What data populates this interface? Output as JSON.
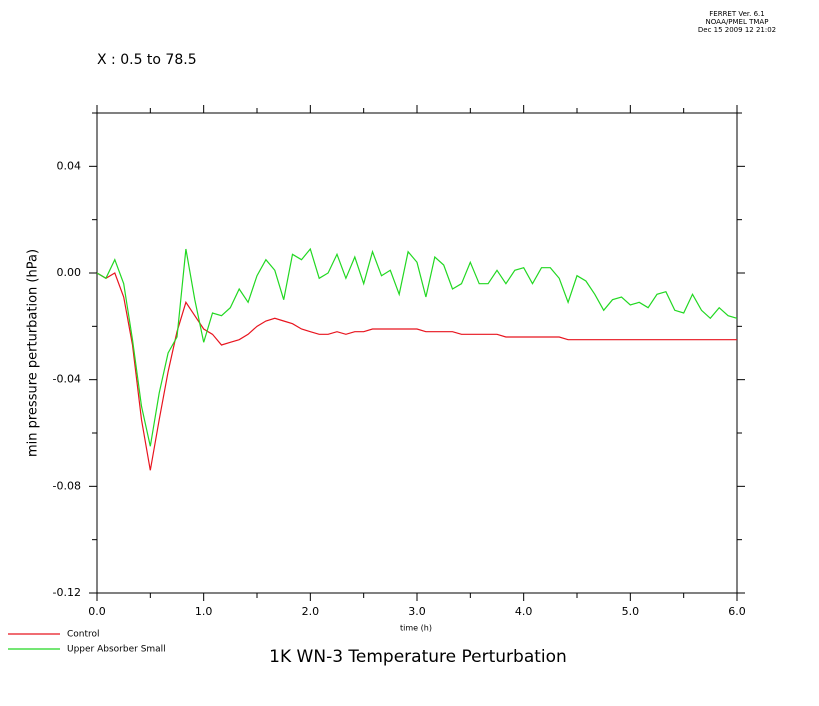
{
  "header": [
    "FERRET Ver. 6.1",
    "NOAA/PMEL TMAP",
    "Dec 15 2009 12 21:02"
  ],
  "chart_data": {
    "type": "line",
    "subtitle": "X : 0.5 to 78.5",
    "title": "1K WN-3 Temperature Perturbation",
    "xlabel": "time (h)",
    "ylabel": "min pressure perturbation (hPa)",
    "xlim": [
      0,
      6
    ],
    "ylim": [
      -0.12,
      0.06
    ],
    "xticks": [
      {
        "value": 0,
        "label": "0.0"
      },
      {
        "value": 1,
        "label": "1.0"
      },
      {
        "value": 2,
        "label": "2.0"
      },
      {
        "value": 3,
        "label": "3.0"
      },
      {
        "value": 4,
        "label": "4.0"
      },
      {
        "value": 5,
        "label": "5.0"
      },
      {
        "value": 6,
        "label": "6.0"
      }
    ],
    "xminor_ticks": [
      0.5,
      1.5,
      2.5,
      3.5,
      4.5,
      5.5
    ],
    "yticks": [
      -0.12,
      -0.08,
      -0.04,
      {
        "value": 0,
        "label": "0.00"
      },
      0.04
    ],
    "yminor_ticks": [
      -0.1,
      -0.06,
      -0.02,
      0.02,
      0.06
    ],
    "legend": "bottom-left",
    "x": [
      0,
      0.083,
      0.167,
      0.25,
      0.333,
      0.417,
      0.5,
      0.583,
      0.667,
      0.75,
      0.833,
      0.917,
      1,
      1.083,
      1.167,
      1.25,
      1.333,
      1.417,
      1.5,
      1.583,
      1.667,
      1.75,
      1.833,
      1.917,
      2,
      2.083,
      2.167,
      2.25,
      2.333,
      2.417,
      2.5,
      2.583,
      2.667,
      2.75,
      2.833,
      2.917,
      3,
      3.083,
      3.167,
      3.25,
      3.333,
      3.417,
      3.5,
      3.583,
      3.667,
      3.75,
      3.833,
      3.917,
      4,
      4.083,
      4.167,
      4.25,
      4.333,
      4.417,
      4.5,
      4.583,
      4.667,
      4.75,
      4.833,
      4.917,
      5,
      5.083,
      5.167,
      5.25,
      5.333,
      5.417,
      5.5,
      5.583,
      5.667,
      5.75,
      5.833,
      5.917,
      6
    ],
    "series": [
      {
        "name": "Control",
        "color": "#e8141e",
        "values": [
          0,
          -0.002,
          0,
          -0.009,
          -0.027,
          -0.055,
          -0.074,
          -0.055,
          -0.037,
          -0.022,
          -0.011,
          -0.016,
          -0.021,
          -0.023,
          -0.027,
          -0.026,
          -0.025,
          -0.023,
          -0.02,
          -0.018,
          -0.017,
          -0.018,
          -0.019,
          -0.021,
          -0.022,
          -0.023,
          -0.023,
          -0.022,
          -0.023,
          -0.022,
          -0.022,
          -0.021,
          -0.021,
          -0.021,
          -0.021,
          -0.021,
          -0.021,
          -0.022,
          -0.022,
          -0.022,
          -0.022,
          -0.023,
          -0.023,
          -0.023,
          -0.023,
          -0.023,
          -0.024,
          -0.024,
          -0.024,
          -0.024,
          -0.024,
          -0.024,
          -0.024,
          -0.025,
          -0.025,
          -0.025,
          -0.025,
          -0.025,
          -0.025,
          -0.025,
          -0.025,
          -0.025,
          -0.025,
          -0.025,
          -0.025,
          -0.025,
          -0.025,
          -0.025,
          -0.025,
          -0.025,
          -0.025,
          -0.025,
          -0.025
        ]
      },
      {
        "name": "Upper Absorber Small",
        "color": "#22d822",
        "values": [
          0,
          -0.002,
          0.005,
          -0.004,
          -0.025,
          -0.05,
          -0.065,
          -0.045,
          -0.03,
          -0.024,
          0.009,
          -0.01,
          -0.026,
          -0.015,
          -0.016,
          -0.013,
          -0.006,
          -0.011,
          -0.001,
          0.005,
          0.001,
          -0.01,
          0.007,
          0.005,
          0.009,
          -0.002,
          0,
          0.007,
          -0.002,
          0.006,
          -0.004,
          0.008,
          -0.001,
          0.001,
          -0.008,
          0.008,
          0.004,
          -0.009,
          0.006,
          0.003,
          -0.006,
          -0.004,
          0.004,
          -0.004,
          -0.004,
          0.001,
          -0.004,
          0.001,
          0.002,
          -0.004,
          0.002,
          0.002,
          -0.002,
          -0.011,
          -0.001,
          -0.003,
          -0.008,
          -0.014,
          -0.01,
          -0.009,
          -0.012,
          -0.011,
          -0.013,
          -0.008,
          -0.007,
          -0.014,
          -0.015,
          -0.008,
          -0.014,
          -0.017,
          -0.013,
          -0.016,
          -0.017
        ]
      }
    ]
  }
}
